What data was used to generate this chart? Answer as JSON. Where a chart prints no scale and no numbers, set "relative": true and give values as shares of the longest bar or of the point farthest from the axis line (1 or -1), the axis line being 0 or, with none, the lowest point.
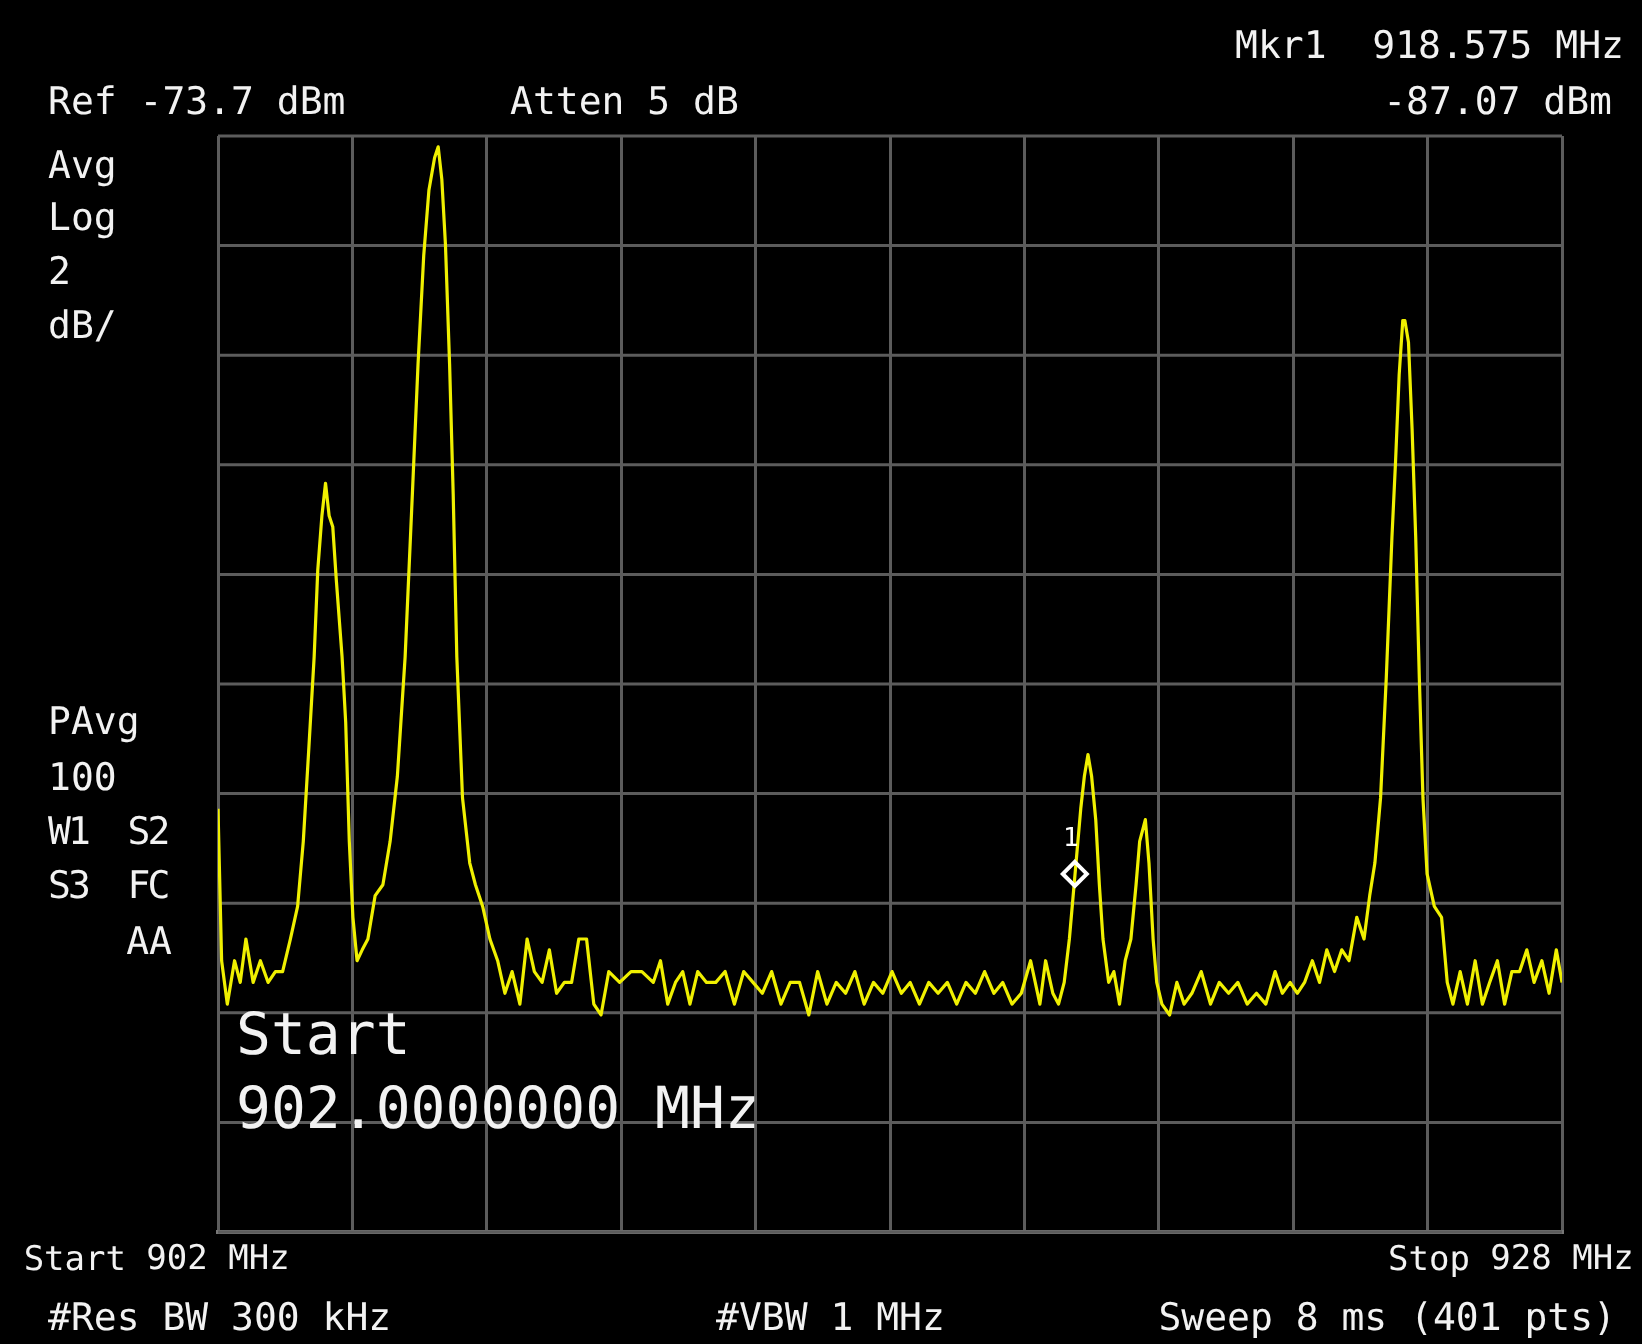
{
  "chart_data": {
    "type": "line",
    "annotations": [
      "Ref -73.7 dBm",
      "Atten 5 dB",
      "Mkr1  918.575 MHz",
      "-87.07 dBm",
      "Avg",
      "Log",
      "2",
      "dB/",
      "PAvg",
      "100",
      "W1  S2",
      "S3  FC",
      "AA",
      "Start",
      "902.0000000 MHz",
      "#Res BW 300 kHz",
      "#VBW 1 MHz",
      "Sweep 8 ms (401 pts)",
      "Start",
      "Stop",
      {
        "text": "1",
        "x": 918.575,
        "y": 0.33
      }
    ],
    "xlim": [
      902,
      928
    ],
    "xticks": [
      {
        "value": 902,
        "label": "902 MHz"
      },
      {
        "value": 904.6,
        "label": null
      },
      {
        "value": 907.2,
        "label": null
      },
      {
        "value": 909.8,
        "label": null
      },
      {
        "value": 912.4,
        "label": null
      },
      {
        "value": 915,
        "label": null
      },
      {
        "value": 917.6,
        "label": null
      },
      {
        "value": 920.2,
        "label": null
      },
      {
        "value": 922.8,
        "label": null
      },
      {
        "value": 925.4,
        "label": null
      },
      {
        "value": 928,
        "label": "928 MHz"
      }
    ],
    "relative": true,
    "tick_labels": "x",
    "grid": true,
    "legend": false,
    "marker": "none",
    "line_style": "solid",
    "series": [
      {
        "color": "#f0f000",
        "x": [
          902.0,
          902.07,
          902.18,
          902.32,
          902.43,
          902.54,
          902.68,
          902.82,
          902.97,
          903.11,
          903.25,
          903.4,
          903.54,
          903.65,
          903.75,
          903.86,
          903.93,
          904.01,
          904.08,
          904.15,
          904.22,
          904.29,
          904.4,
          904.47,
          904.54,
          904.61,
          904.69,
          904.79,
          904.9,
          905.04,
          905.19,
          905.33,
          905.47,
          905.62,
          905.76,
          905.87,
          905.98,
          906.08,
          906.19,
          906.26,
          906.33,
          906.4,
          906.48,
          906.55,
          906.62,
          906.73,
          906.87,
          906.98,
          907.12,
          907.26,
          907.41,
          907.55,
          907.69,
          907.84,
          907.98,
          908.12,
          908.27,
          908.41,
          908.55,
          908.7,
          908.84,
          908.98,
          909.13,
          909.27,
          909.41,
          909.56,
          909.77,
          909.99,
          910.2,
          910.42,
          910.56,
          910.7,
          910.85,
          910.99,
          911.13,
          911.28,
          911.45,
          911.63,
          911.81,
          911.99,
          912.17,
          912.35,
          912.53,
          912.71,
          912.89,
          913.07,
          913.25,
          913.43,
          913.6,
          913.78,
          913.96,
          914.14,
          914.32,
          914.5,
          914.68,
          914.86,
          915.04,
          915.22,
          915.39,
          915.57,
          915.75,
          915.93,
          916.11,
          916.29,
          916.47,
          916.65,
          916.83,
          917.01,
          917.18,
          917.36,
          917.54,
          917.72,
          917.9,
          918.01,
          918.15,
          918.26,
          918.37,
          918.47,
          918.58,
          918.69,
          918.76,
          918.83,
          918.9,
          918.98,
          919.05,
          919.12,
          919.23,
          919.33,
          919.44,
          919.55,
          919.66,
          919.76,
          919.83,
          919.94,
          920.01,
          920.09,
          920.16,
          920.26,
          920.41,
          920.55,
          920.69,
          920.84,
          921.02,
          921.2,
          921.37,
          921.55,
          921.73,
          921.91,
          922.09,
          922.27,
          922.45,
          922.59,
          922.74,
          922.88,
          923.02,
          923.17,
          923.31,
          923.45,
          923.6,
          923.74,
          923.88,
          924.03,
          924.17,
          924.28,
          924.38,
          924.49,
          924.6,
          924.71,
          924.78,
          924.85,
          924.92,
          924.96,
          925.03,
          925.1,
          925.17,
          925.24,
          925.31,
          925.39,
          925.53,
          925.67,
          925.78,
          925.89,
          926.03,
          926.17,
          926.32,
          926.46,
          926.6,
          926.75,
          926.89,
          927.03,
          927.18,
          927.32,
          927.46,
          927.61,
          927.75,
          927.89,
          928.0
        ],
        "values": [
          0.39,
          0.25,
          0.21,
          0.25,
          0.23,
          0.27,
          0.23,
          0.25,
          0.23,
          0.24,
          0.24,
          0.27,
          0.3,
          0.36,
          0.44,
          0.53,
          0.61,
          0.66,
          0.69,
          0.66,
          0.65,
          0.6,
          0.53,
          0.47,
          0.36,
          0.29,
          0.25,
          0.26,
          0.27,
          0.31,
          0.32,
          0.36,
          0.42,
          0.53,
          0.68,
          0.8,
          0.9,
          0.96,
          0.99,
          1,
          0.97,
          0.91,
          0.8,
          0.68,
          0.53,
          0.4,
          0.34,
          0.32,
          0.3,
          0.27,
          0.25,
          0.22,
          0.24,
          0.21,
          0.27,
          0.24,
          0.23,
          0.26,
          0.22,
          0.23,
          0.23,
          0.27,
          0.27,
          0.21,
          0.2,
          0.24,
          0.23,
          0.24,
          0.24,
          0.23,
          0.25,
          0.21,
          0.23,
          0.24,
          0.21,
          0.24,
          0.23,
          0.23,
          0.24,
          0.21,
          0.24,
          0.23,
          0.22,
          0.24,
          0.21,
          0.23,
          0.23,
          0.2,
          0.24,
          0.21,
          0.23,
          0.22,
          0.24,
          0.21,
          0.23,
          0.22,
          0.24,
          0.22,
          0.23,
          0.21,
          0.23,
          0.22,
          0.23,
          0.21,
          0.23,
          0.22,
          0.24,
          0.22,
          0.23,
          0.21,
          0.22,
          0.25,
          0.21,
          0.25,
          0.22,
          0.21,
          0.23,
          0.27,
          0.33,
          0.39,
          0.42,
          0.44,
          0.42,
          0.38,
          0.32,
          0.27,
          0.23,
          0.24,
          0.21,
          0.25,
          0.27,
          0.32,
          0.36,
          0.38,
          0.34,
          0.27,
          0.23,
          0.21,
          0.2,
          0.23,
          0.21,
          0.22,
          0.24,
          0.21,
          0.23,
          0.22,
          0.23,
          0.21,
          0.22,
          0.21,
          0.24,
          0.22,
          0.23,
          0.22,
          0.23,
          0.25,
          0.23,
          0.26,
          0.24,
          0.26,
          0.25,
          0.29,
          0.27,
          0.31,
          0.34,
          0.4,
          0.51,
          0.64,
          0.71,
          0.79,
          0.84,
          0.84,
          0.82,
          0.74,
          0.64,
          0.51,
          0.4,
          0.33,
          0.3,
          0.29,
          0.23,
          0.21,
          0.24,
          0.21,
          0.25,
          0.21,
          0.23,
          0.25,
          0.21,
          0.24,
          0.24,
          0.26,
          0.23,
          0.25,
          0.22,
          0.26,
          0.23
        ]
      }
    ]
  }
}
